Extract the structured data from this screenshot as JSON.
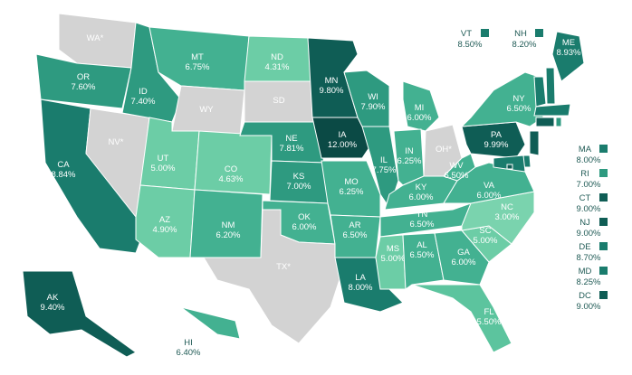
{
  "states": [
    {
      "abbr": "WA*",
      "color": "#d3d3d3"
    },
    {
      "abbr": "OR",
      "rate": "7.60%",
      "color": "#2e9a80"
    },
    {
      "abbr": "CA",
      "rate": "8.84%",
      "color": "#1a7c6d"
    },
    {
      "abbr": "NV*",
      "color": "#d3d3d3"
    },
    {
      "abbr": "ID",
      "rate": "7.40%",
      "color": "#2e9a80"
    },
    {
      "abbr": "MT",
      "rate": "6.75%",
      "color": "#43b191"
    },
    {
      "abbr": "WY",
      "color": "#d3d3d3"
    },
    {
      "abbr": "UT",
      "rate": "5.00%",
      "color": "#6ccda6"
    },
    {
      "abbr": "CO",
      "rate": "4.63%",
      "color": "#6ccda6"
    },
    {
      "abbr": "AZ",
      "rate": "4.90%",
      "color": "#6ccda6"
    },
    {
      "abbr": "NM",
      "rate": "6.20%",
      "color": "#43b191"
    },
    {
      "abbr": "ND",
      "rate": "4.31%",
      "color": "#6ccda6"
    },
    {
      "abbr": "SD",
      "color": "#d3d3d3"
    },
    {
      "abbr": "NE",
      "rate": "7.81%",
      "color": "#2e9a80"
    },
    {
      "abbr": "KS",
      "rate": "7.00%",
      "color": "#2e9a80"
    },
    {
      "abbr": "OK",
      "rate": "6.00%",
      "color": "#43b191"
    },
    {
      "abbr": "TX*",
      "color": "#d3d3d3"
    },
    {
      "abbr": "MN",
      "rate": "9.80%",
      "color": "#0f5d55"
    },
    {
      "abbr": "IA",
      "rate": "12.00%",
      "color": "#0b4a45"
    },
    {
      "abbr": "MO",
      "rate": "6.25%",
      "color": "#43b191"
    },
    {
      "abbr": "AR",
      "rate": "6.50%",
      "color": "#43b191"
    },
    {
      "abbr": "LA",
      "rate": "8.00%",
      "color": "#1a7c6d"
    },
    {
      "abbr": "WI",
      "rate": "7.90%",
      "color": "#2e9a80"
    },
    {
      "abbr": "IL",
      "rate": "7.75%",
      "color": "#2e9a80"
    },
    {
      "abbr": "MI",
      "rate": "6.00%",
      "color": "#43b191"
    },
    {
      "abbr": "IN",
      "rate": "6.25%",
      "color": "#43b191"
    },
    {
      "abbr": "OH*",
      "color": "#d3d3d3"
    },
    {
      "abbr": "KY",
      "rate": "6.00%",
      "color": "#43b191"
    },
    {
      "abbr": "TN",
      "rate": "6.50%",
      "color": "#43b191"
    },
    {
      "abbr": "MS",
      "rate": "5.00%",
      "color": "#6ccda6"
    },
    {
      "abbr": "AL",
      "rate": "6.50%",
      "color": "#43b191"
    },
    {
      "abbr": "GA",
      "rate": "6.00%",
      "color": "#43b191"
    },
    {
      "abbr": "FL",
      "rate": "5.50%",
      "color": "#5cc49e"
    },
    {
      "abbr": "SC",
      "rate": "5.00%",
      "color": "#6ccda6"
    },
    {
      "abbr": "NC",
      "rate": "3.00%",
      "color": "#7ad3ae"
    },
    {
      "abbr": "VA",
      "rate": "6.00%",
      "color": "#43b191"
    },
    {
      "abbr": "WV",
      "rate": "6.50%",
      "color": "#43b191"
    },
    {
      "abbr": "PA",
      "rate": "9.99%",
      "color": "#0f5d55"
    },
    {
      "abbr": "NY",
      "rate": "6.50%",
      "color": "#43b191"
    },
    {
      "abbr": "ME",
      "rate": "8.93%",
      "color": "#1a7c6d"
    },
    {
      "abbr": "AK",
      "rate": "9.40%",
      "color": "#0f5d55"
    },
    {
      "abbr": "HI",
      "rate": "6.40%",
      "color": "#43b191"
    }
  ],
  "callouts": [
    {
      "abbr": "VT",
      "rate": "8.50%",
      "color": "#1a7c6d"
    },
    {
      "abbr": "NH",
      "rate": "8.20%",
      "color": "#1a7c6d"
    },
    {
      "abbr": "MA",
      "rate": "8.00%",
      "color": "#1a7c6d"
    },
    {
      "abbr": "RI",
      "rate": "7.00%",
      "color": "#2e9a80"
    },
    {
      "abbr": "CT",
      "rate": "9.00%",
      "color": "#0f5d55"
    },
    {
      "abbr": "NJ",
      "rate": "9.00%",
      "color": "#0f5d55"
    },
    {
      "abbr": "DE",
      "rate": "8.70%",
      "color": "#1a7c6d"
    },
    {
      "abbr": "MD",
      "rate": "8.25%",
      "color": "#1a7c6d"
    },
    {
      "abbr": "DC",
      "rate": "9.00%",
      "color": "#0f5d55"
    }
  ]
}
